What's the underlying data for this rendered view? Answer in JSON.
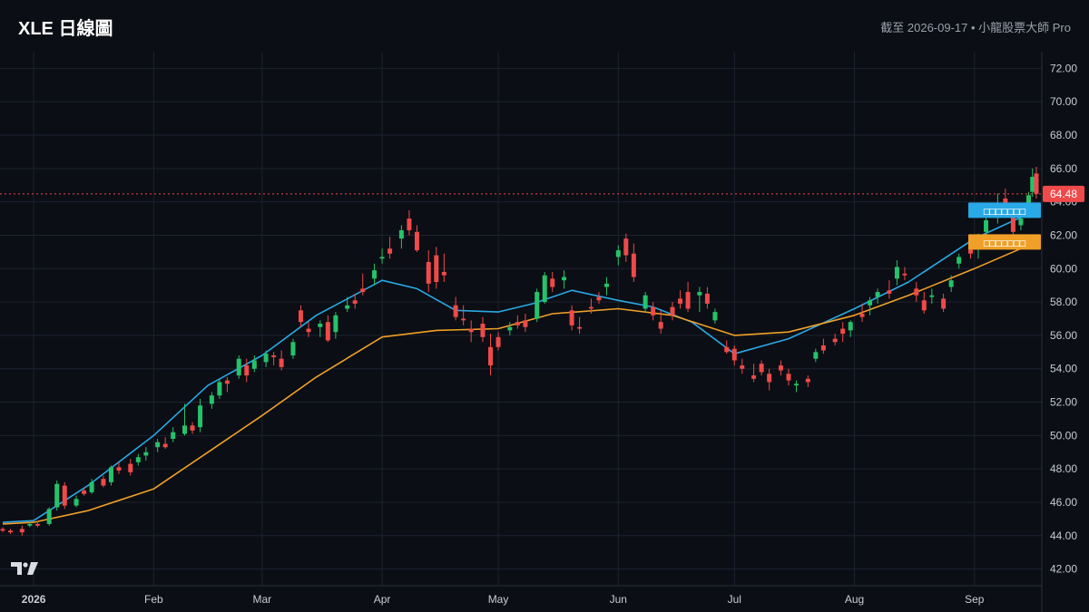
{
  "header": {
    "title": "XLE 日線圖",
    "subtitle": "截至 2026-09-17 • 小龍股票大師 Pro"
  },
  "colors": {
    "background": "#0b0e14",
    "grid": "#1c2230",
    "up": "#26c26b",
    "down": "#ef4a4a",
    "ma_fast": "#29a9e6",
    "ma_slow": "#f0a028",
    "last_price_line": "#ef4a4a",
    "axis_text": "#c8ccd4"
  },
  "chart_data": {
    "type": "candlestick",
    "title": "XLE 日線圖",
    "ylim": [
      41,
      73
    ],
    "y_ticks": [
      "42.00",
      "44.00",
      "46.00",
      "48.00",
      "50.00",
      "52.00",
      "54.00",
      "56.00",
      "58.00",
      "60.00",
      "62.00",
      "64.00",
      "66.00",
      "68.00",
      "70.00",
      "72.00"
    ],
    "x_ticks": [
      {
        "label": "2026",
        "date": "2026-01-01",
        "bold": true
      },
      {
        "label": "Feb",
        "date": "2026-02-01"
      },
      {
        "label": "Mar",
        "date": "2026-03-01"
      },
      {
        "label": "Apr",
        "date": "2026-04-01"
      },
      {
        "label": "May",
        "date": "2026-05-01"
      },
      {
        "label": "Jun",
        "date": "2026-06-01"
      },
      {
        "label": "Jul",
        "date": "2026-07-01"
      },
      {
        "label": "Aug",
        "date": "2026-08-01"
      },
      {
        "label": "Sep",
        "date": "2026-09-01"
      }
    ],
    "date_range": [
      "2025-12-24",
      "2026-09-17"
    ],
    "last_price": "64.48",
    "last_price_value": 64.48,
    "ma_fast_label": "□□□□□□□",
    "ma_fast_value": 63.5,
    "ma_slow_label": "□□□□□□□",
    "ma_slow_value": 61.6,
    "series": [
      {
        "name": "ma_fast",
        "points": [
          [
            "2025-12-24",
            44.8
          ],
          [
            "2026-01-01",
            44.9
          ],
          [
            "2026-01-15",
            47.0
          ],
          [
            "2026-02-01",
            50.0
          ],
          [
            "2026-02-15",
            53.0
          ],
          [
            "2026-03-01",
            54.8
          ],
          [
            "2026-03-15",
            57.2
          ],
          [
            "2026-04-01",
            59.3
          ],
          [
            "2026-04-10",
            58.8
          ],
          [
            "2026-04-20",
            57.5
          ],
          [
            "2026-05-01",
            57.4
          ],
          [
            "2026-05-10",
            57.9
          ],
          [
            "2026-05-20",
            58.7
          ],
          [
            "2026-06-01",
            58.1
          ],
          [
            "2026-06-10",
            57.7
          ],
          [
            "2026-06-20",
            56.8
          ],
          [
            "2026-07-01",
            54.9
          ],
          [
            "2026-07-15",
            55.8
          ],
          [
            "2026-08-01",
            57.6
          ],
          [
            "2026-08-15",
            59.2
          ],
          [
            "2026-09-01",
            61.8
          ],
          [
            "2026-09-17",
            63.5
          ]
        ]
      },
      {
        "name": "ma_slow",
        "points": [
          [
            "2025-12-24",
            44.7
          ],
          [
            "2026-01-01",
            44.8
          ],
          [
            "2026-01-15",
            45.5
          ],
          [
            "2026-02-01",
            46.8
          ],
          [
            "2026-02-15",
            49.0
          ],
          [
            "2026-03-01",
            51.2
          ],
          [
            "2026-03-15",
            53.5
          ],
          [
            "2026-04-01",
            55.9
          ],
          [
            "2026-04-15",
            56.3
          ],
          [
            "2026-05-01",
            56.4
          ],
          [
            "2026-05-15",
            57.3
          ],
          [
            "2026-06-01",
            57.6
          ],
          [
            "2026-06-15",
            57.2
          ],
          [
            "2026-07-01",
            56.0
          ],
          [
            "2026-07-15",
            56.2
          ],
          [
            "2026-08-01",
            57.2
          ],
          [
            "2026-08-15",
            58.4
          ],
          [
            "2026-09-01",
            60.0
          ],
          [
            "2026-09-17",
            61.6
          ]
        ]
      }
    ],
    "candles": [
      [
        "2025-12-24",
        44.4,
        44.5,
        44.2,
        44.3
      ],
      [
        "2025-12-26",
        44.3,
        44.4,
        44.1,
        44.2
      ],
      [
        "2025-12-29",
        44.4,
        44.6,
        44.0,
        44.2
      ],
      [
        "2025-12-31",
        44.6,
        44.8,
        44.5,
        44.7
      ],
      [
        "2026-01-02",
        44.7,
        44.9,
        44.5,
        44.6
      ],
      [
        "2026-01-05",
        44.7,
        45.7,
        44.6,
        45.6
      ],
      [
        "2026-01-07",
        45.7,
        47.3,
        45.5,
        47.1
      ],
      [
        "2026-01-09",
        47.0,
        47.2,
        45.6,
        45.8
      ],
      [
        "2026-01-12",
        45.8,
        46.4,
        45.7,
        46.2
      ],
      [
        "2026-01-14",
        46.7,
        46.9,
        46.4,
        46.5
      ],
      [
        "2026-01-16",
        46.6,
        47.4,
        46.5,
        47.2
      ],
      [
        "2026-01-19",
        47.4,
        47.6,
        46.9,
        47.0
      ],
      [
        "2026-01-21",
        47.2,
        48.2,
        47.0,
        48.1
      ],
      [
        "2026-01-23",
        48.1,
        48.4,
        47.7,
        47.9
      ],
      [
        "2026-01-26",
        48.3,
        48.6,
        47.6,
        47.8
      ],
      [
        "2026-01-28",
        48.4,
        48.9,
        48.2,
        48.7
      ],
      [
        "2026-01-30",
        48.8,
        49.3,
        48.5,
        49.0
      ],
      [
        "2026-02-02",
        49.3,
        49.8,
        49.0,
        49.6
      ],
      [
        "2026-02-04",
        49.5,
        49.9,
        49.2,
        49.3
      ],
      [
        "2026-02-06",
        49.8,
        50.5,
        49.6,
        50.2
      ],
      [
        "2026-02-09",
        50.1,
        51.9,
        50.0,
        50.6
      ],
      [
        "2026-02-11",
        50.6,
        50.8,
        50.1,
        50.3
      ],
      [
        "2026-02-13",
        50.5,
        52.2,
        50.2,
        51.8
      ],
      [
        "2026-02-16",
        51.9,
        52.6,
        51.6,
        52.4
      ],
      [
        "2026-02-18",
        52.4,
        53.4,
        52.2,
        53.2
      ],
      [
        "2026-02-20",
        53.3,
        53.5,
        52.6,
        53.1
      ],
      [
        "2026-02-23",
        53.6,
        54.8,
        53.4,
        54.6
      ],
      [
        "2026-02-25",
        54.2,
        54.6,
        53.2,
        53.6
      ],
      [
        "2026-02-27",
        54.0,
        54.8,
        53.8,
        54.5
      ],
      [
        "2026-03-02",
        54.4,
        55.1,
        54.1,
        54.9
      ],
      [
        "2026-03-04",
        54.8,
        55.0,
        54.2,
        54.7
      ],
      [
        "2026-03-06",
        54.6,
        55.1,
        53.9,
        54.1
      ],
      [
        "2026-03-09",
        54.8,
        55.8,
        54.6,
        55.6
      ],
      [
        "2026-03-11",
        57.5,
        57.8,
        56.5,
        56.8
      ],
      [
        "2026-03-13",
        56.4,
        56.8,
        55.9,
        56.2
      ],
      [
        "2026-03-16",
        56.5,
        56.9,
        55.9,
        56.7
      ],
      [
        "2026-03-18",
        56.8,
        57.2,
        55.6,
        55.7
      ],
      [
        "2026-03-20",
        56.2,
        57.4,
        55.8,
        57.2
      ],
      [
        "2026-03-23",
        57.6,
        58.3,
        57.4,
        57.8
      ],
      [
        "2026-03-25",
        58.1,
        58.5,
        57.6,
        57.9
      ],
      [
        "2026-03-27",
        58.8,
        59.7,
        58.4,
        58.6
      ],
      [
        "2026-03-30",
        59.4,
        60.3,
        59.0,
        59.9
      ],
      [
        "2026-04-01",
        60.6,
        61.2,
        60.3,
        60.7
      ],
      [
        "2026-04-03",
        61.2,
        61.9,
        60.6,
        60.9
      ],
      [
        "2026-04-06",
        61.8,
        62.6,
        61.2,
        62.3
      ],
      [
        "2026-04-08",
        63.0,
        63.5,
        62.0,
        62.3
      ],
      [
        "2026-04-10",
        62.2,
        62.6,
        61.0,
        61.1
      ],
      [
        "2026-04-13",
        60.4,
        61.1,
        58.6,
        59.1
      ],
      [
        "2026-04-15",
        60.8,
        61.3,
        58.8,
        59.2
      ],
      [
        "2026-04-17",
        59.8,
        60.9,
        59.2,
        59.6
      ],
      [
        "2026-04-20",
        57.8,
        58.3,
        56.9,
        57.1
      ],
      [
        "2026-04-22",
        57.0,
        57.8,
        56.6,
        56.9
      ],
      [
        "2026-04-24",
        56.4,
        56.9,
        55.6,
        56.2
      ],
      [
        "2026-04-27",
        56.7,
        57.1,
        55.6,
        55.9
      ],
      [
        "2026-04-29",
        55.3,
        56.1,
        53.6,
        54.2
      ],
      [
        "2026-05-01",
        55.9,
        56.2,
        55.1,
        55.3
      ],
      [
        "2026-05-04",
        56.3,
        56.8,
        56.0,
        56.5
      ],
      [
        "2026-05-06",
        56.8,
        57.2,
        56.4,
        56.6
      ],
      [
        "2026-05-08",
        56.9,
        57.3,
        56.2,
        56.5
      ],
      [
        "2026-05-11",
        57.0,
        58.8,
        56.8,
        58.6
      ],
      [
        "2026-05-13",
        58.0,
        59.8,
        57.9,
        59.6
      ],
      [
        "2026-05-15",
        59.4,
        59.8,
        58.6,
        58.9
      ],
      [
        "2026-05-18",
        59.3,
        59.9,
        58.8,
        59.5
      ],
      [
        "2026-05-20",
        57.5,
        57.8,
        56.3,
        56.6
      ],
      [
        "2026-05-22",
        56.5,
        57.1,
        56.1,
        56.4
      ],
      [
        "2026-05-25",
        57.7,
        58.2,
        57.3,
        57.6
      ],
      [
        "2026-05-27",
        58.3,
        58.6,
        57.9,
        58.1
      ],
      [
        "2026-05-29",
        58.9,
        59.5,
        58.4,
        59.1
      ],
      [
        "2026-06-01",
        60.7,
        61.4,
        60.2,
        61.1
      ],
      [
        "2026-06-03",
        61.8,
        62.1,
        60.4,
        60.8
      ],
      [
        "2026-06-05",
        60.9,
        61.5,
        59.2,
        59.5
      ],
      [
        "2026-06-08",
        57.6,
        58.6,
        57.4,
        58.4
      ],
      [
        "2026-06-10",
        57.7,
        58.0,
        56.9,
        57.2
      ],
      [
        "2026-06-12",
        56.8,
        57.5,
        56.1,
        56.4
      ],
      [
        "2026-06-15",
        57.7,
        58.0,
        56.9,
        57.2
      ],
      [
        "2026-06-17",
        58.2,
        58.7,
        57.6,
        57.9
      ],
      [
        "2026-06-19",
        58.6,
        59.2,
        57.4,
        57.6
      ],
      [
        "2026-06-22",
        58.4,
        58.9,
        57.4,
        58.6
      ],
      [
        "2026-06-24",
        58.5,
        58.9,
        57.6,
        57.9
      ],
      [
        "2026-06-26",
        56.9,
        57.6,
        56.7,
        57.4
      ],
      [
        "2026-06-29",
        55.3,
        55.7,
        54.9,
        55.0
      ],
      [
        "2026-07-01",
        55.2,
        55.4,
        54.2,
        54.5
      ],
      [
        "2026-07-03",
        54.2,
        54.6,
        53.7,
        54.0
      ],
      [
        "2026-07-06",
        53.6,
        54.3,
        53.2,
        53.4
      ],
      [
        "2026-07-08",
        54.3,
        54.5,
        53.6,
        53.8
      ],
      [
        "2026-07-10",
        53.7,
        54.0,
        52.7,
        53.2
      ],
      [
        "2026-07-13",
        54.2,
        54.5,
        53.6,
        53.9
      ],
      [
        "2026-07-15",
        53.7,
        54.0,
        53.0,
        53.3
      ],
      [
        "2026-07-17",
        53.0,
        53.3,
        52.6,
        53.1
      ],
      [
        "2026-07-20",
        53.4,
        53.6,
        52.9,
        53.2
      ],
      [
        "2026-07-22",
        54.6,
        55.2,
        54.4,
        55.0
      ],
      [
        "2026-07-24",
        55.4,
        55.8,
        54.9,
        55.1
      ],
      [
        "2026-07-27",
        55.8,
        56.1,
        55.4,
        55.6
      ],
      [
        "2026-07-29",
        56.4,
        56.8,
        55.6,
        56.1
      ],
      [
        "2026-07-31",
        56.3,
        56.9,
        55.9,
        56.8
      ],
      [
        "2026-08-03",
        57.3,
        57.9,
        56.8,
        57.1
      ],
      [
        "2026-08-05",
        57.8,
        58.3,
        57.2,
        58.1
      ],
      [
        "2026-08-07",
        58.3,
        58.8,
        57.9,
        58.6
      ],
      [
        "2026-08-10",
        58.7,
        59.3,
        58.2,
        58.5
      ],
      [
        "2026-08-12",
        59.4,
        60.5,
        59.0,
        60.1
      ],
      [
        "2026-08-14",
        59.7,
        60.1,
        59.3,
        59.6
      ],
      [
        "2026-08-17",
        58.8,
        59.2,
        58.0,
        58.4
      ],
      [
        "2026-08-19",
        58.1,
        58.6,
        57.3,
        57.5
      ],
      [
        "2026-08-21",
        58.3,
        58.8,
        57.9,
        58.4
      ],
      [
        "2026-08-24",
        58.2,
        58.5,
        57.4,
        57.6
      ],
      [
        "2026-08-26",
        58.9,
        59.6,
        58.6,
        59.3
      ],
      [
        "2026-08-28",
        60.3,
        60.9,
        60.0,
        60.7
      ],
      [
        "2026-08-31",
        61.2,
        61.7,
        60.6,
        60.9
      ],
      [
        "2026-09-02",
        61.4,
        62.1,
        60.6,
        61.8
      ],
      [
        "2026-09-04",
        62.2,
        63.2,
        61.9,
        62.9
      ],
      [
        "2026-09-07",
        63.3,
        64.5,
        62.7,
        63.6
      ],
      [
        "2026-09-09",
        64.2,
        64.8,
        63.4,
        63.8
      ],
      [
        "2026-09-11",
        63.2,
        63.5,
        61.8,
        62.2
      ],
      [
        "2026-09-13",
        62.6,
        63.3,
        62.3,
        63.0
      ],
      [
        "2026-09-15",
        63.9,
        64.6,
        63.6,
        64.4
      ],
      [
        "2026-09-16",
        64.6,
        66.0,
        64.3,
        65.5
      ],
      [
        "2026-09-17",
        65.7,
        66.1,
        64.2,
        64.48
      ]
    ]
  }
}
